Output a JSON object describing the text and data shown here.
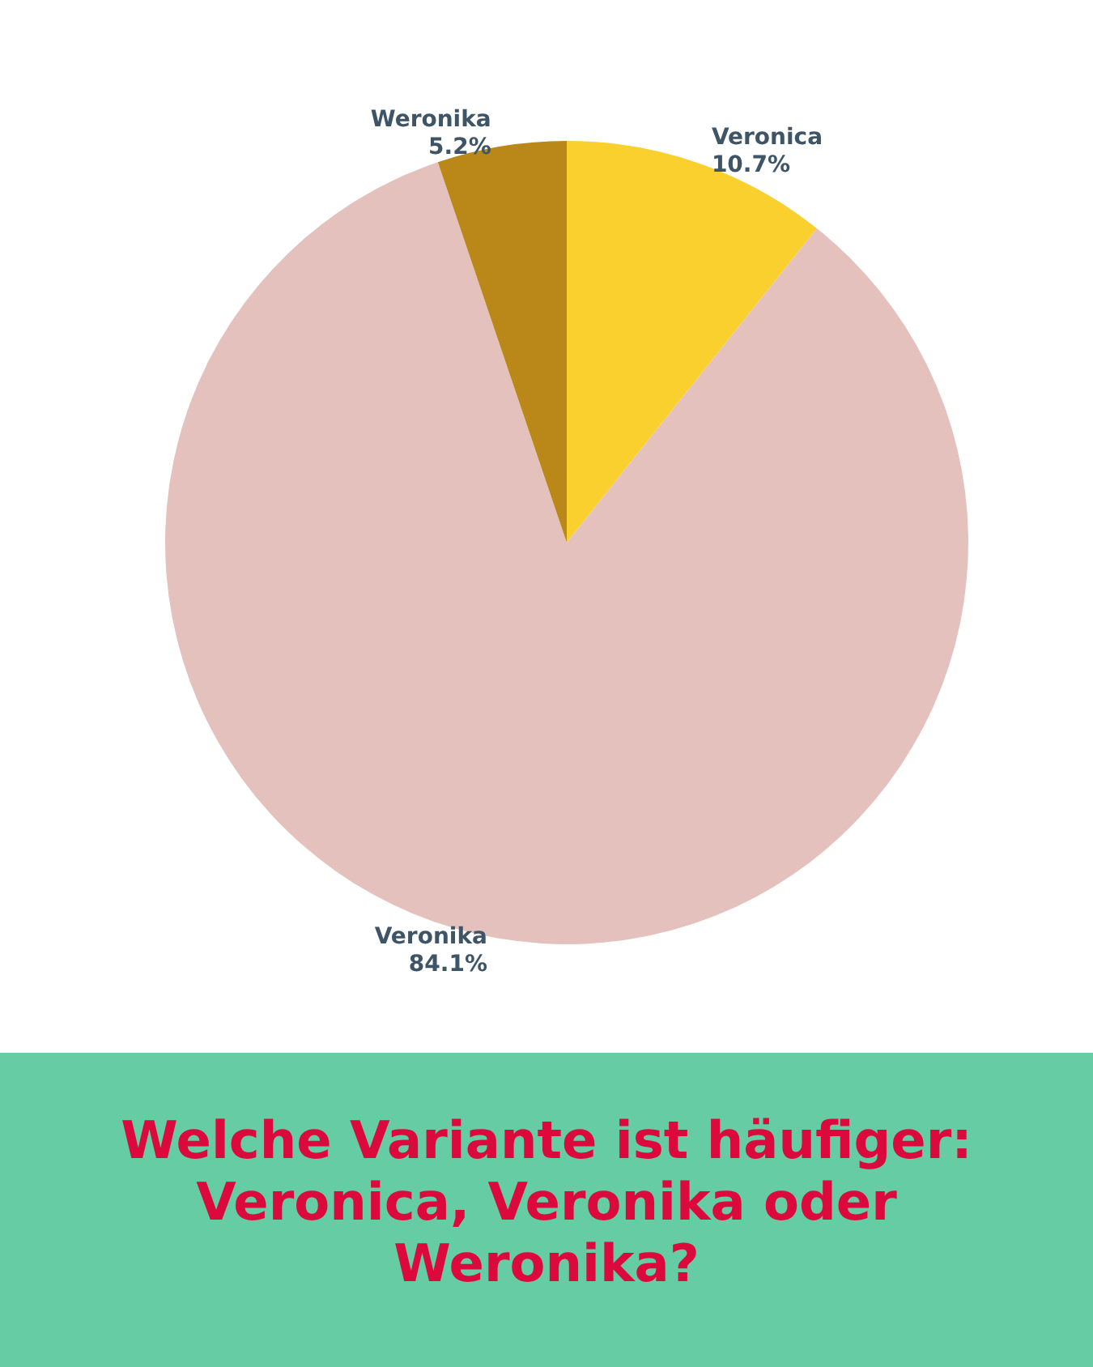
{
  "chart_data": {
    "type": "pie",
    "title": "Welche Variante ist häufiger: Veronica, Veronika oder Weronika?",
    "categories": [
      "Veronica",
      "Veronika",
      "Weronika"
    ],
    "values": [
      10.7,
      84.1,
      5.2
    ],
    "value_labels": [
      "10.7%",
      "84.1%",
      "5.2%"
    ],
    "colors": [
      "#f9d02e",
      "#e4c1bc",
      "#b98818"
    ]
  }
}
